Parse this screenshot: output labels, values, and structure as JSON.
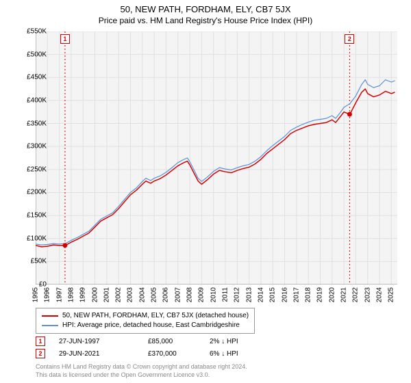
{
  "title": "50, NEW PATH, FORDHAM, ELY, CB7 5JX",
  "subtitle": "Price paid vs. HM Land Registry's House Price Index (HPI)",
  "chart": {
    "type": "line",
    "background_color": "#f4f4f4",
    "grid_color": "#e0e0e0",
    "axis_color": "#888888",
    "ylim": [
      0,
      550000
    ],
    "ytick_step": 50000,
    "ytick_prefix": "£",
    "ytick_suffix": "K",
    "ytick_divisor": 1000,
    "xticks": [
      1995,
      1996,
      1997,
      1998,
      1999,
      2000,
      2001,
      2002,
      2003,
      2004,
      2005,
      2006,
      2007,
      2008,
      2009,
      2010,
      2011,
      2012,
      2013,
      2014,
      2015,
      2016,
      2017,
      2018,
      2019,
      2020,
      2021,
      2022,
      2023,
      2024,
      2025
    ],
    "xlim": [
      1995,
      2025.5
    ],
    "label_fontsize": 10,
    "series": [
      {
        "id": "property",
        "color": "#d40000",
        "width": 1.5,
        "data": [
          [
            1995.0,
            85000
          ],
          [
            1995.5,
            82000
          ],
          [
            1996.0,
            83000
          ],
          [
            1996.5,
            86000
          ],
          [
            1997.0,
            85000
          ],
          [
            1997.48,
            85000
          ],
          [
            1997.5,
            85000
          ],
          [
            1998.0,
            92000
          ],
          [
            1998.5,
            98000
          ],
          [
            1999.0,
            105000
          ],
          [
            1999.5,
            112000
          ],
          [
            2000.0,
            125000
          ],
          [
            2000.5,
            138000
          ],
          [
            2001.0,
            145000
          ],
          [
            2001.5,
            152000
          ],
          [
            2002.0,
            165000
          ],
          [
            2002.5,
            180000
          ],
          [
            2003.0,
            195000
          ],
          [
            2003.5,
            205000
          ],
          [
            2004.0,
            218000
          ],
          [
            2004.3,
            225000
          ],
          [
            2004.7,
            220000
          ],
          [
            2005.0,
            225000
          ],
          [
            2005.5,
            230000
          ],
          [
            2006.0,
            238000
          ],
          [
            2006.5,
            248000
          ],
          [
            2007.0,
            258000
          ],
          [
            2007.5,
            265000
          ],
          [
            2007.8,
            268000
          ],
          [
            2008.0,
            260000
          ],
          [
            2008.3,
            245000
          ],
          [
            2008.7,
            225000
          ],
          [
            2009.0,
            218000
          ],
          [
            2009.5,
            228000
          ],
          [
            2010.0,
            240000
          ],
          [
            2010.5,
            248000
          ],
          [
            2011.0,
            245000
          ],
          [
            2011.5,
            243000
          ],
          [
            2012.0,
            248000
          ],
          [
            2012.5,
            252000
          ],
          [
            2013.0,
            255000
          ],
          [
            2013.5,
            262000
          ],
          [
            2014.0,
            272000
          ],
          [
            2014.5,
            285000
          ],
          [
            2015.0,
            295000
          ],
          [
            2015.5,
            305000
          ],
          [
            2016.0,
            315000
          ],
          [
            2016.5,
            328000
          ],
          [
            2017.0,
            335000
          ],
          [
            2017.5,
            340000
          ],
          [
            2018.0,
            345000
          ],
          [
            2018.5,
            348000
          ],
          [
            2019.0,
            350000
          ],
          [
            2019.5,
            352000
          ],
          [
            2020.0,
            358000
          ],
          [
            2020.3,
            352000
          ],
          [
            2020.7,
            365000
          ],
          [
            2021.0,
            375000
          ],
          [
            2021.48,
            370000
          ],
          [
            2021.5,
            370000
          ],
          [
            2022.0,
            395000
          ],
          [
            2022.5,
            418000
          ],
          [
            2022.8,
            425000
          ],
          [
            2023.0,
            415000
          ],
          [
            2023.5,
            408000
          ],
          [
            2024.0,
            412000
          ],
          [
            2024.5,
            420000
          ],
          [
            2025.0,
            415000
          ],
          [
            2025.3,
            418000
          ]
        ]
      },
      {
        "id": "hpi",
        "color": "#5b8fd6",
        "width": 1.2,
        "data": [
          [
            1995.0,
            88000
          ],
          [
            1995.5,
            86000
          ],
          [
            1996.0,
            87000
          ],
          [
            1996.5,
            89000
          ],
          [
            1997.0,
            88000
          ],
          [
            1997.5,
            89000
          ],
          [
            1998.0,
            96000
          ],
          [
            1998.5,
            102000
          ],
          [
            1999.0,
            109000
          ],
          [
            1999.5,
            116000
          ],
          [
            2000.0,
            129000
          ],
          [
            2000.5,
            142000
          ],
          [
            2001.0,
            149000
          ],
          [
            2001.5,
            156000
          ],
          [
            2002.0,
            170000
          ],
          [
            2002.5,
            185000
          ],
          [
            2003.0,
            200000
          ],
          [
            2003.5,
            210000
          ],
          [
            2004.0,
            224000
          ],
          [
            2004.3,
            231000
          ],
          [
            2004.7,
            226000
          ],
          [
            2005.0,
            231000
          ],
          [
            2005.5,
            236000
          ],
          [
            2006.0,
            244000
          ],
          [
            2006.5,
            254000
          ],
          [
            2007.0,
            265000
          ],
          [
            2007.5,
            272000
          ],
          [
            2007.8,
            275000
          ],
          [
            2008.0,
            267000
          ],
          [
            2008.3,
            252000
          ],
          [
            2008.7,
            231000
          ],
          [
            2009.0,
            224000
          ],
          [
            2009.5,
            234000
          ],
          [
            2010.0,
            246000
          ],
          [
            2010.5,
            254000
          ],
          [
            2011.0,
            251000
          ],
          [
            2011.5,
            249000
          ],
          [
            2012.0,
            254000
          ],
          [
            2012.5,
            258000
          ],
          [
            2013.0,
            261000
          ],
          [
            2013.5,
            268000
          ],
          [
            2014.0,
            278000
          ],
          [
            2014.5,
            291000
          ],
          [
            2015.0,
            302000
          ],
          [
            2015.5,
            312000
          ],
          [
            2016.0,
            322000
          ],
          [
            2016.5,
            335000
          ],
          [
            2017.0,
            342000
          ],
          [
            2017.5,
            348000
          ],
          [
            2018.0,
            353000
          ],
          [
            2018.5,
            357000
          ],
          [
            2019.0,
            359000
          ],
          [
            2019.5,
            361000
          ],
          [
            2020.0,
            367000
          ],
          [
            2020.3,
            361000
          ],
          [
            2020.7,
            374000
          ],
          [
            2021.0,
            385000
          ],
          [
            2021.5,
            393000
          ],
          [
            2022.0,
            410000
          ],
          [
            2022.5,
            435000
          ],
          [
            2022.8,
            445000
          ],
          [
            2023.0,
            435000
          ],
          [
            2023.5,
            428000
          ],
          [
            2024.0,
            432000
          ],
          [
            2024.5,
            445000
          ],
          [
            2025.0,
            440000
          ],
          [
            2025.3,
            443000
          ]
        ]
      }
    ],
    "sale_markers": [
      {
        "n": "1",
        "x": 1997.48,
        "y": 85000,
        "border_color": "#d40000",
        "text_color": "#d40000",
        "vline_color": "#d40000"
      },
      {
        "n": "2",
        "x": 2021.48,
        "y": 370000,
        "border_color": "#d40000",
        "text_color": "#d40000",
        "vline_color": "#d40000"
      }
    ],
    "sale_dot_color": "#d40000",
    "sale_dot_radius": 3.5
  },
  "legend": {
    "items": [
      {
        "color": "#d40000",
        "label": "50, NEW PATH, FORDHAM, ELY, CB7 5JX (detached house)"
      },
      {
        "color": "#5b8fd6",
        "label": "HPI: Average price, detached house, East Cambridgeshire"
      }
    ]
  },
  "sales": [
    {
      "n": "1",
      "date": "27-JUN-1997",
      "price": "£85,000",
      "pct": "2% ↓ HPI",
      "border_color": "#d40000",
      "text_color": "#d40000"
    },
    {
      "n": "2",
      "date": "29-JUN-2021",
      "price": "£370,000",
      "pct": "6% ↓ HPI",
      "border_color": "#d40000",
      "text_color": "#d40000"
    }
  ],
  "footer": {
    "line1": "Contains HM Land Registry data © Crown copyright and database right 2024.",
    "line2": "This data is licensed under the Open Government Licence v3.0."
  }
}
